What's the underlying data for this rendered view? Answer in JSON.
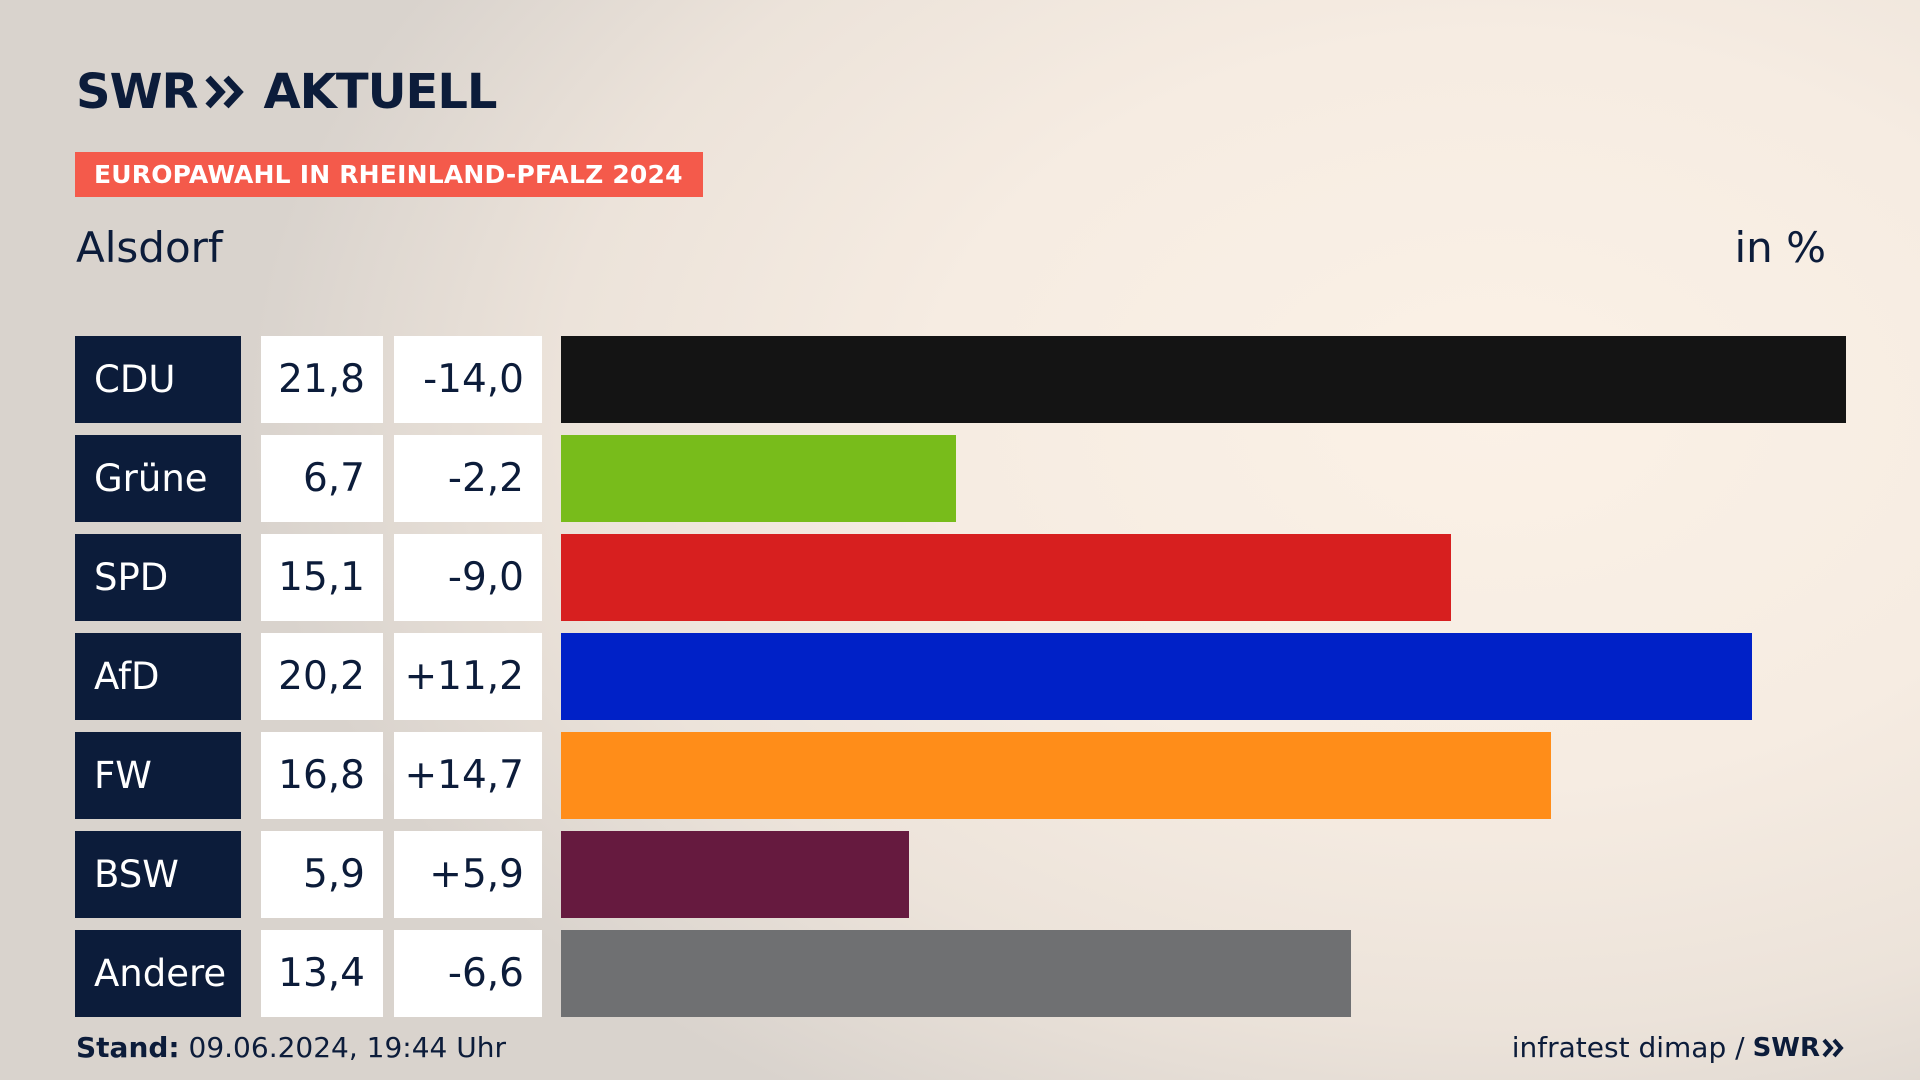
{
  "brand": {
    "name": "SWR",
    "section": "AKTUELL"
  },
  "header": {
    "tag": "EUROPAWAHL IN RHEINLAND-PFALZ 2024",
    "place": "Alsdorf",
    "unit": "in %"
  },
  "colors": {
    "navy": "#0c1c3a",
    "tag_red": "#f45a4b",
    "CDU": "#141414",
    "Grüne": "#78bc1b",
    "SPD": "#d71f1f",
    "AfD": "#0021c7",
    "FW": "#ff8d19",
    "BSW": "#661a3f",
    "Andere": "#6f7072"
  },
  "chart_data": {
    "type": "bar",
    "orientation": "horizontal",
    "title": "EUROPAWAHL IN RHEINLAND-PFALZ 2024",
    "subtitle": "Alsdorf",
    "unit": "in %",
    "categories": [
      "CDU",
      "Grüne",
      "SPD",
      "AfD",
      "FW",
      "BSW",
      "Andere"
    ],
    "values": [
      21.8,
      6.7,
      15.1,
      20.2,
      16.8,
      5.9,
      13.4
    ],
    "value_labels": [
      "21,8",
      "6,7",
      "15,1",
      "20,2",
      "16,8",
      "5,9",
      "13,4"
    ],
    "differences": [
      -14.0,
      -2.2,
      -9.0,
      11.2,
      14.7,
      5.9,
      -6.6
    ],
    "difference_labels": [
      "-14,0",
      "-2,2",
      "-9,0",
      "+11,2",
      "+14,7",
      "+5,9",
      "-6,6"
    ],
    "xlim": [
      0,
      21.8
    ],
    "grid": false,
    "legend": "none"
  },
  "footer": {
    "stand_label": "Stand:",
    "stand_value": "09.06.2024, 19:44 Uhr",
    "source": "infratest dimap /",
    "source_brand": "SWR"
  }
}
